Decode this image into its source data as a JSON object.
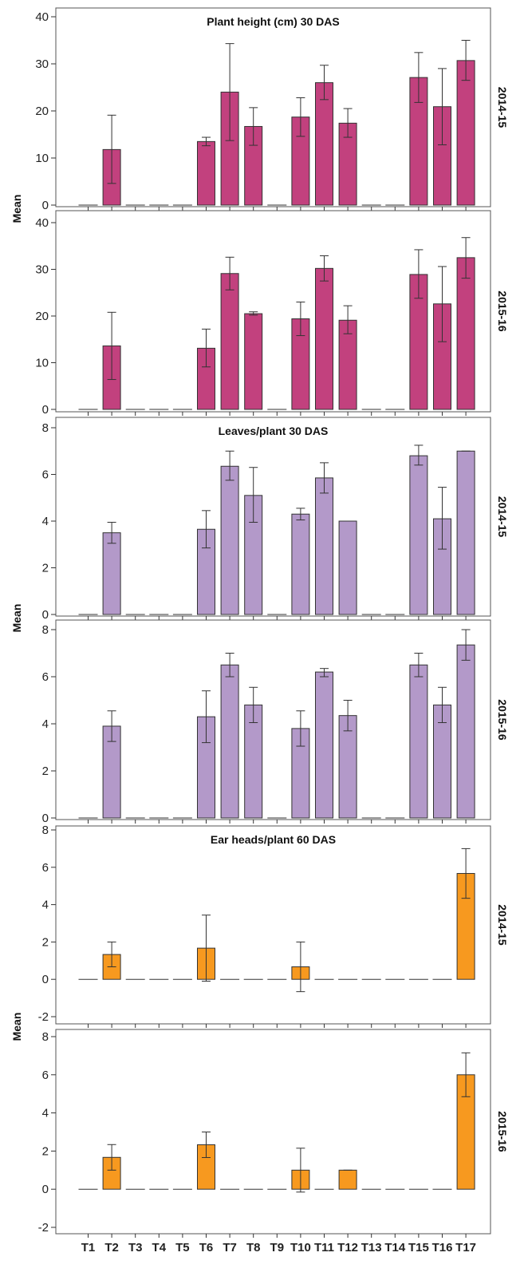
{
  "chart_data": [
    {
      "type": "bar",
      "title": "Plant height (cm) 30 DAS",
      "ylabel": "Mean",
      "categories": [
        "T1",
        "T2",
        "T3",
        "T4",
        "T5",
        "T6",
        "T7",
        "T8",
        "T9",
        "T10",
        "T11",
        "T12",
        "T13",
        "T14",
        "T15",
        "T16",
        "T17"
      ],
      "color": "#c2417e",
      "rows": [
        {
          "label": "2014-15",
          "ylim": [
            0,
            40
          ],
          "yticks": [
            0,
            10,
            20,
            30,
            40
          ],
          "values": [
            0,
            11.8,
            0,
            0,
            0,
            13.5,
            24,
            16.7,
            0,
            18.7,
            26,
            17.4,
            0,
            0,
            27.1,
            20.9,
            30.7
          ],
          "err_low": [
            0,
            4.6,
            0,
            0,
            0,
            12.6,
            13.7,
            12.7,
            0,
            14.6,
            22.4,
            14.4,
            0,
            0,
            21.8,
            12.8,
            26.5
          ],
          "err_high": [
            0,
            19.1,
            0,
            0,
            0,
            14.4,
            34.3,
            20.7,
            0,
            22.8,
            29.7,
            20.5,
            0,
            0,
            32.4,
            29,
            35
          ]
        },
        {
          "label": "2015-16",
          "ylim": [
            0,
            42
          ],
          "yticks": [
            0,
            10,
            20,
            30,
            40
          ],
          "values": [
            0,
            13.6,
            0,
            0,
            0,
            13.1,
            29.1,
            20.5,
            0,
            19.4,
            30.2,
            19.1,
            0,
            0,
            28.9,
            22.6,
            32.5
          ],
          "err_low": [
            0,
            6.4,
            0,
            0,
            0,
            9.1,
            25.6,
            20.2,
            0,
            15.8,
            27.5,
            16.2,
            0,
            0,
            23.8,
            14.5,
            28.1
          ],
          "err_high": [
            0,
            20.8,
            0,
            0,
            0,
            17.2,
            32.6,
            20.9,
            0,
            23,
            32.9,
            22.2,
            0,
            0,
            34.2,
            30.6,
            36.8
          ]
        }
      ]
    },
    {
      "type": "bar",
      "title": "Leaves/plant 30 DAS",
      "ylabel": "Mean",
      "categories": [
        "T1",
        "T2",
        "T3",
        "T4",
        "T5",
        "T6",
        "T7",
        "T8",
        "T9",
        "T10",
        "T11",
        "T12",
        "T13",
        "T14",
        "T15",
        "T16",
        "T17"
      ],
      "color": "#b399c9",
      "rows": [
        {
          "label": "2014-15",
          "ylim": [
            0,
            8.3
          ],
          "yticks": [
            0,
            2,
            4,
            6,
            8
          ],
          "values": [
            0,
            3.5,
            0,
            0,
            0,
            3.65,
            6.35,
            5.1,
            0,
            4.3,
            5.85,
            4,
            0,
            0,
            6.8,
            4.1,
            7
          ],
          "err_low": [
            0,
            3.05,
            0,
            0,
            0,
            2.85,
            5.75,
            3.95,
            0,
            4.05,
            5.2,
            4,
            0,
            0,
            6.4,
            2.8,
            7
          ],
          "err_high": [
            0,
            3.95,
            0,
            0,
            0,
            4.45,
            7,
            6.3,
            0,
            4.55,
            6.5,
            4,
            0,
            0,
            7.25,
            5.45,
            7
          ]
        },
        {
          "label": "2015-16",
          "ylim": [
            0,
            8.2
          ],
          "yticks": [
            0,
            2,
            4,
            6,
            8
          ],
          "values": [
            0,
            3.9,
            0,
            0,
            0,
            4.3,
            6.5,
            4.8,
            0,
            3.8,
            6.2,
            4.35,
            0,
            0,
            6.5,
            4.8,
            7.35
          ],
          "err_low": [
            0,
            3.25,
            0,
            0,
            0,
            3.2,
            6,
            4.05,
            0,
            3.05,
            6,
            3.7,
            0,
            0,
            6,
            4.05,
            6.7
          ],
          "err_high": [
            0,
            4.55,
            0,
            0,
            0,
            5.4,
            7,
            5.55,
            0,
            4.55,
            6.35,
            5,
            0,
            0,
            7,
            5.55,
            8
          ]
        }
      ]
    },
    {
      "type": "bar",
      "title": "Ear heads/plant 60 DAS",
      "ylabel": "Mean",
      "categories": [
        "T1",
        "T2",
        "T3",
        "T4",
        "T5",
        "T6",
        "T7",
        "T8",
        "T9",
        "T10",
        "T11",
        "T12",
        "T13",
        "T14",
        "T15",
        "T16",
        "T17"
      ],
      "color": "#f7991f",
      "rows": [
        {
          "label": "2014-15",
          "ylim": [
            -2,
            8.3
          ],
          "yticks": [
            -2,
            0,
            2,
            4,
            6,
            8
          ],
          "values": [
            0,
            1.33,
            0,
            0,
            0,
            1.67,
            0,
            0,
            0,
            0.67,
            0,
            0,
            0,
            0,
            0,
            0,
            5.67
          ],
          "err_low": [
            0,
            0.67,
            0,
            0,
            0,
            -0.1,
            0,
            0,
            0,
            -0.66,
            0,
            0,
            0,
            0,
            0,
            0,
            4.34
          ],
          "err_high": [
            0,
            2,
            0,
            0,
            0,
            3.44,
            0,
            0,
            0,
            2,
            0,
            0,
            0,
            0,
            0,
            0,
            7
          ]
        },
        {
          "label": "2015-16",
          "ylim": [
            -2,
            8.2
          ],
          "yticks": [
            -2,
            0,
            2,
            4,
            6,
            8
          ],
          "values": [
            0,
            1.67,
            0,
            0,
            0,
            2.33,
            0,
            0,
            0,
            1,
            0,
            1,
            0,
            0,
            0,
            0,
            6
          ],
          "err_low": [
            0,
            1,
            0,
            0,
            0,
            1.66,
            0,
            0,
            0,
            -0.15,
            0,
            1,
            0,
            0,
            0,
            0,
            4.85
          ],
          "err_high": [
            0,
            2.34,
            0,
            0,
            0,
            3,
            0,
            0,
            0,
            2.15,
            0,
            1,
            0,
            0,
            0,
            0,
            7.15
          ]
        }
      ]
    }
  ]
}
